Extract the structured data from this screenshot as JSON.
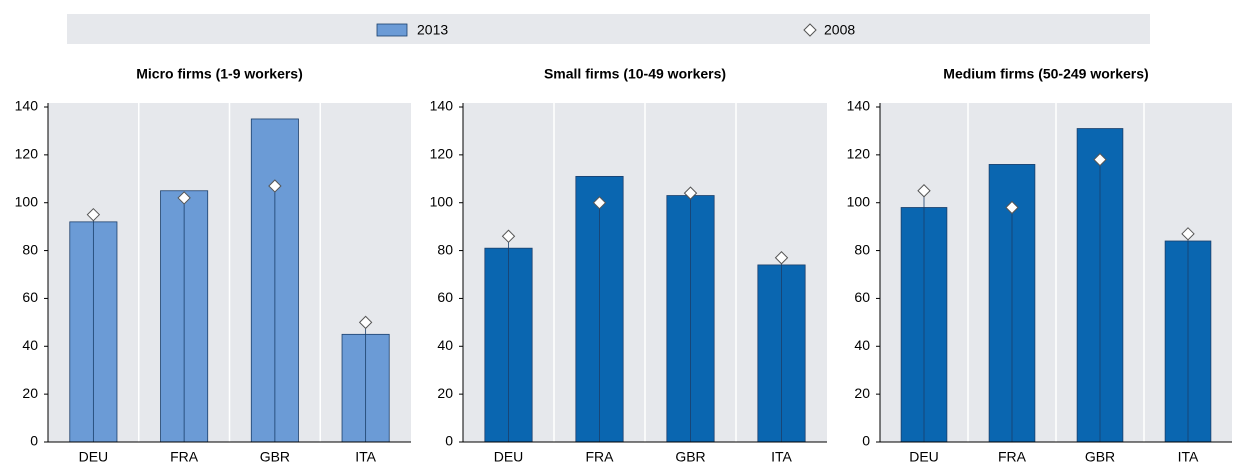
{
  "chart_data": [
    {
      "type": "bar",
      "title": "Micro firms (1-9 workers)",
      "categories": [
        "DEU",
        "FRA",
        "GBR",
        "ITA"
      ],
      "series": [
        {
          "name": "2013",
          "color": "#6b9bd6",
          "values": [
            92,
            105,
            135,
            45
          ]
        },
        {
          "name": "2008",
          "color": "#ffffff",
          "values": [
            95,
            102,
            107,
            50
          ]
        }
      ],
      "ylim": [
        0,
        140
      ],
      "yticks": [
        0,
        20,
        40,
        60,
        80,
        100,
        120,
        140
      ]
    },
    {
      "type": "bar",
      "title": "Small firms (10-49 workers)",
      "categories": [
        "DEU",
        "FRA",
        "GBR",
        "ITA"
      ],
      "series": [
        {
          "color": "#0a66b0",
          "values": [
            81,
            111,
            103,
            74
          ]
        },
        {
          "color": "#ffffff",
          "values": [
            86,
            100,
            104,
            77
          ]
        }
      ],
      "ylim": [
        0,
        140
      ],
      "yticks": [
        0,
        20,
        40,
        60,
        80,
        100,
        120,
        140
      ]
    },
    {
      "type": "bar",
      "title": "Medium  firms (50-249 workers)",
      "categories": [
        "DEU",
        "FRA",
        "GBR",
        "ITA"
      ],
      "series": [
        {
          "color": "#0a66b0",
          "values": [
            98,
            116,
            131,
            84
          ]
        },
        {
          "color": "#ffffff",
          "values": [
            105,
            98,
            118,
            87
          ]
        }
      ],
      "ylim": [
        0,
        140
      ],
      "yticks": [
        0,
        20,
        40,
        60,
        80,
        100,
        120,
        140
      ]
    }
  ]
}
